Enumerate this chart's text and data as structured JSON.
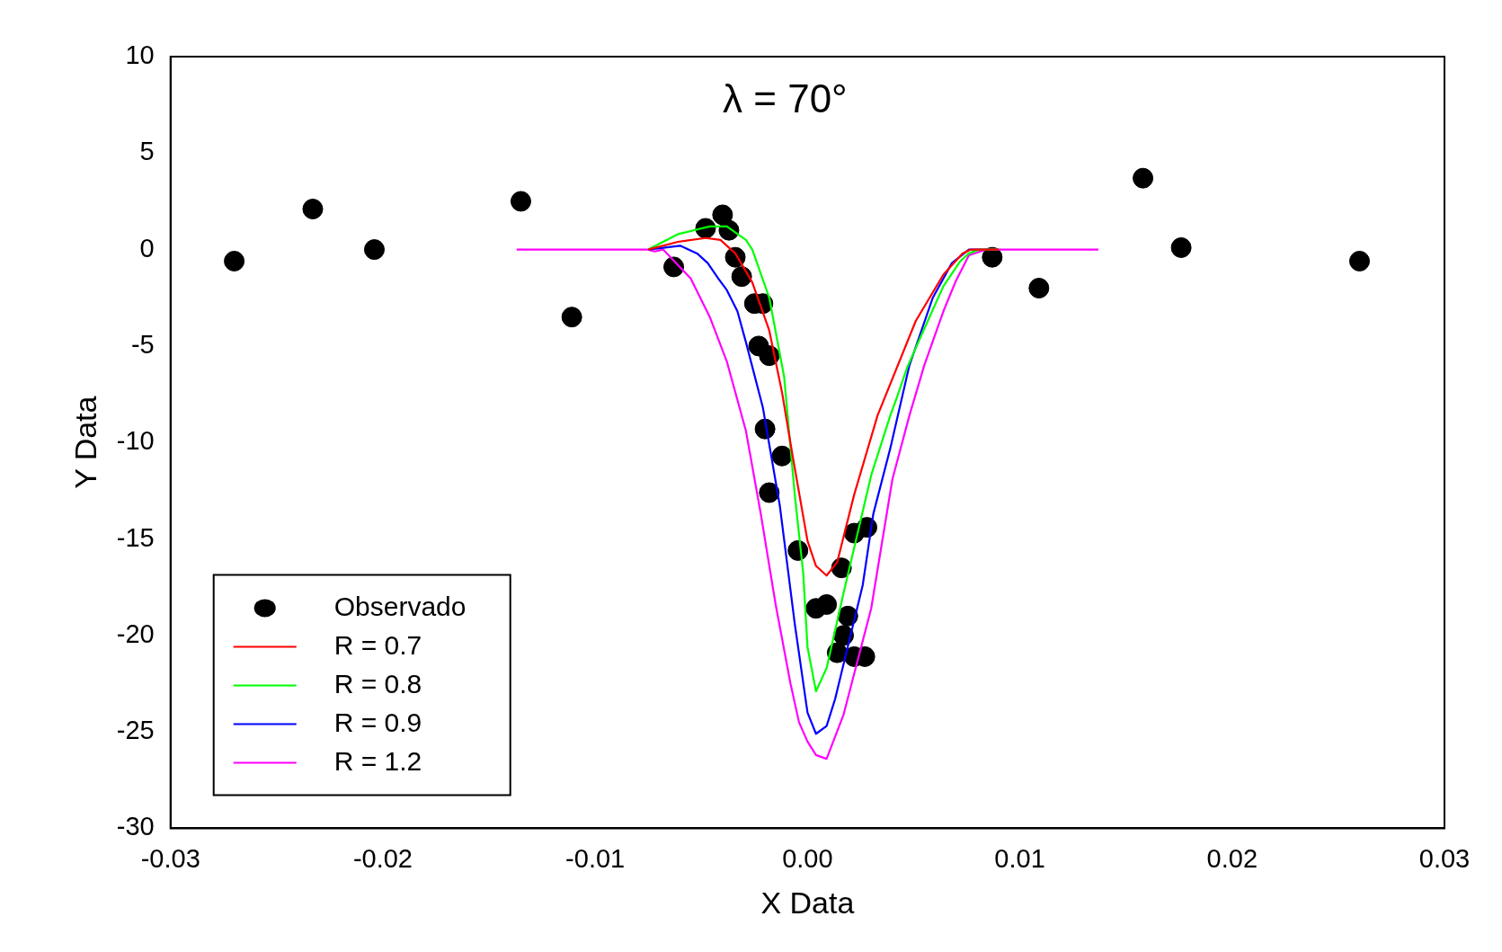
{
  "chart_data": {
    "type": "line",
    "title": "λ = 70°",
    "xlabel": "X Data",
    "ylabel": "Y Data",
    "xlim": [
      -0.03,
      0.03
    ],
    "xticks": [
      -0.03,
      -0.02,
      -0.01,
      {
        "value": 0,
        "label": "0.00"
      },
      0.01,
      0.02,
      0.03
    ],
    "ylim": [
      -30,
      10
    ],
    "yticks": [
      -30,
      -25,
      -20,
      -15,
      -10,
      -5,
      0,
      5,
      10
    ],
    "grid": false,
    "legend": "bottom left",
    "line_style": "solid",
    "marker": "none",
    "series": [
      {
        "name": "Observado",
        "type": "scatter",
        "marker": "circle",
        "color": "#000000",
        "x": [
          -0.027,
          -0.0233,
          -0.0204,
          -0.0135,
          -0.0111,
          -0.0063,
          -0.0048,
          -0.004,
          -0.0037,
          -0.0034,
          -0.0031,
          -0.0025,
          -0.0021,
          -0.0023,
          -0.0018,
          -0.002,
          -0.0012,
          -0.0018,
          -0.00045,
          0.0004,
          0.0009,
          0.0016,
          0.0022,
          0.0028,
          0.0019,
          0.0017,
          0.0014,
          0.0022,
          0.0027,
          0.0087,
          0.0109,
          0.0158,
          0.0176,
          0.026
        ],
        "values": [
          -0.6,
          2.1,
          0,
          2.5,
          -3.5,
          -0.9,
          1.1,
          1.8,
          1,
          -0.4,
          -1.4,
          -2.8,
          -2.8,
          -5,
          -5.5,
          -9.3,
          -10.7,
          -12.6,
          -15.6,
          -18.6,
          -18.4,
          -16.5,
          -14.7,
          -14.4,
          -19,
          -20,
          -20.9,
          -21.1,
          -21.1,
          -0.4,
          -2,
          3.7,
          0.1,
          -0.6
        ]
      },
      {
        "name": "R = 0.7",
        "color": "#ff0000",
        "x": [
          -0.0075,
          -0.0061,
          -0.0048,
          -0.0041,
          -0.0034,
          -0.0026,
          -0.0018,
          -0.0012,
          -0.0007,
          0,
          0.0004,
          0.0009,
          0.0014,
          0.0022,
          0.0033,
          0.0051,
          0.0064,
          0.0073,
          0.0077,
          0.009
        ],
        "values": [
          0,
          0.4,
          0.6,
          0.5,
          -0.2,
          -1.7,
          -4.2,
          -7.4,
          -10.7,
          -15.1,
          -16.4,
          -16.9,
          -16.2,
          -12.7,
          -8.6,
          -3.7,
          -1.3,
          -0.2,
          0,
          0
        ]
      },
      {
        "name": "R = 0.8",
        "color": "#00ff00",
        "x": [
          -0.0075,
          -0.0061,
          -0.0046,
          -0.0038,
          -0.0029,
          -0.0026,
          -0.0018,
          -0.0011,
          -0.0006,
          -0.0002,
          0,
          0.0004,
          0.0009,
          0.0017,
          0.003,
          0.0039,
          0.0042,
          0.0047,
          0.0053,
          0.0064,
          0.0072,
          0.0076,
          0.0081,
          0.009
        ],
        "values": [
          0,
          0.8,
          1.2,
          1.2,
          0.5,
          0,
          -2.5,
          -6.6,
          -12.7,
          -16.8,
          -20.6,
          -22.9,
          -21.7,
          -17.8,
          -11.7,
          -8.6,
          -7.7,
          -6.1,
          -4.6,
          -1.9,
          -0.6,
          -0.2,
          0,
          0
        ]
      },
      {
        "name": "R = 0.9",
        "color": "#0000ff",
        "x": [
          -0.0075,
          -0.006,
          -0.0052,
          -0.0047,
          -0.0042,
          -0.0038,
          -0.0033,
          -0.0029,
          -0.0021,
          -0.0013,
          -0.0006,
          0,
          0.0004,
          0.0009,
          0.0013,
          0.0026,
          0.0031,
          0.0039,
          0.0048,
          0.0059,
          0.0068,
          0.0076,
          0.009
        ],
        "values": [
          0,
          0.2,
          -0.2,
          -0.7,
          -1.5,
          -2.1,
          -3.2,
          -4.8,
          -8.2,
          -13.3,
          -19.4,
          -24,
          -25.1,
          -24.7,
          -23.3,
          -17.4,
          -13.7,
          -10.3,
          -6,
          -2.5,
          -0.7,
          0,
          0
        ]
      },
      {
        "name": "R = 1.2",
        "color": "#ff00ff",
        "x": [
          -0.0137,
          -0.0075,
          -0.0072,
          -0.0068,
          -0.0055,
          -0.0046,
          -0.0038,
          -0.0029,
          -0.0022,
          -0.0015,
          -0.0008,
          -0.0004,
          0,
          0.0004,
          0.0009,
          0.0017,
          0.003,
          0.004,
          0.0048,
          0.0055,
          0.0064,
          0.007,
          0.0076,
          0.0084,
          0.0137
        ],
        "values": [
          0,
          0,
          -0.1,
          0,
          -1.5,
          -3.5,
          -5.8,
          -9.4,
          -13.7,
          -18.4,
          -22.5,
          -24.5,
          -25.5,
          -26.2,
          -26.4,
          -24.1,
          -18.6,
          -11.9,
          -8.6,
          -6,
          -3.2,
          -1.6,
          -0.3,
          0,
          0
        ]
      }
    ]
  }
}
